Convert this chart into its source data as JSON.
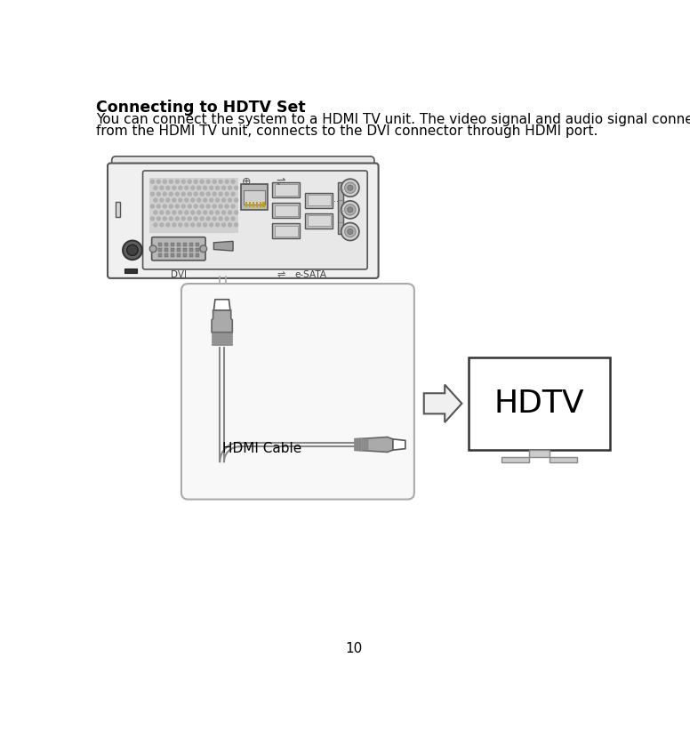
{
  "title": "Connecting to HDTV Set",
  "body_text_1": "You can connect the system to a HDMI TV unit. The video signal and audio signal connector",
  "body_text_2": "from the HDMI TV unit, connects to the DVI connector through HDMI port.",
  "hdmi_cable_label": "HDMI Cable",
  "hdtv_label": "HDTV",
  "page_number": "10",
  "bg_color": "#ffffff",
  "text_color": "#000000",
  "comp_outer_fill": "#f0f0f0",
  "comp_outer_edge": "#555555",
  "panel_fill": "#e8e8e8",
  "panel_edge": "#555555",
  "vent_fill": "#c8c8c8",
  "vent_edge": "#888888",
  "port_fill": "#aaaaaa",
  "port_edge": "#555555",
  "usb_fill": "#b8b8b8",
  "circle_fill": "#c8c8c8",
  "dvi_fill": "#b0b0b0",
  "zoom_fill": "#f8f8f8",
  "zoom_edge": "#aaaaaa",
  "hdmi_plug_fill": "#aaaaaa",
  "hdmi_plug_edge": "#666666",
  "cable_color": "#aaaaaa",
  "cable_edge": "#888888",
  "arrow_fill": "#f0f0f0",
  "arrow_edge": "#555555",
  "tv_edge": "#333333",
  "tv_fill": "#ffffff",
  "stand_fill": "#cccccc",
  "stand_edge": "#888888"
}
